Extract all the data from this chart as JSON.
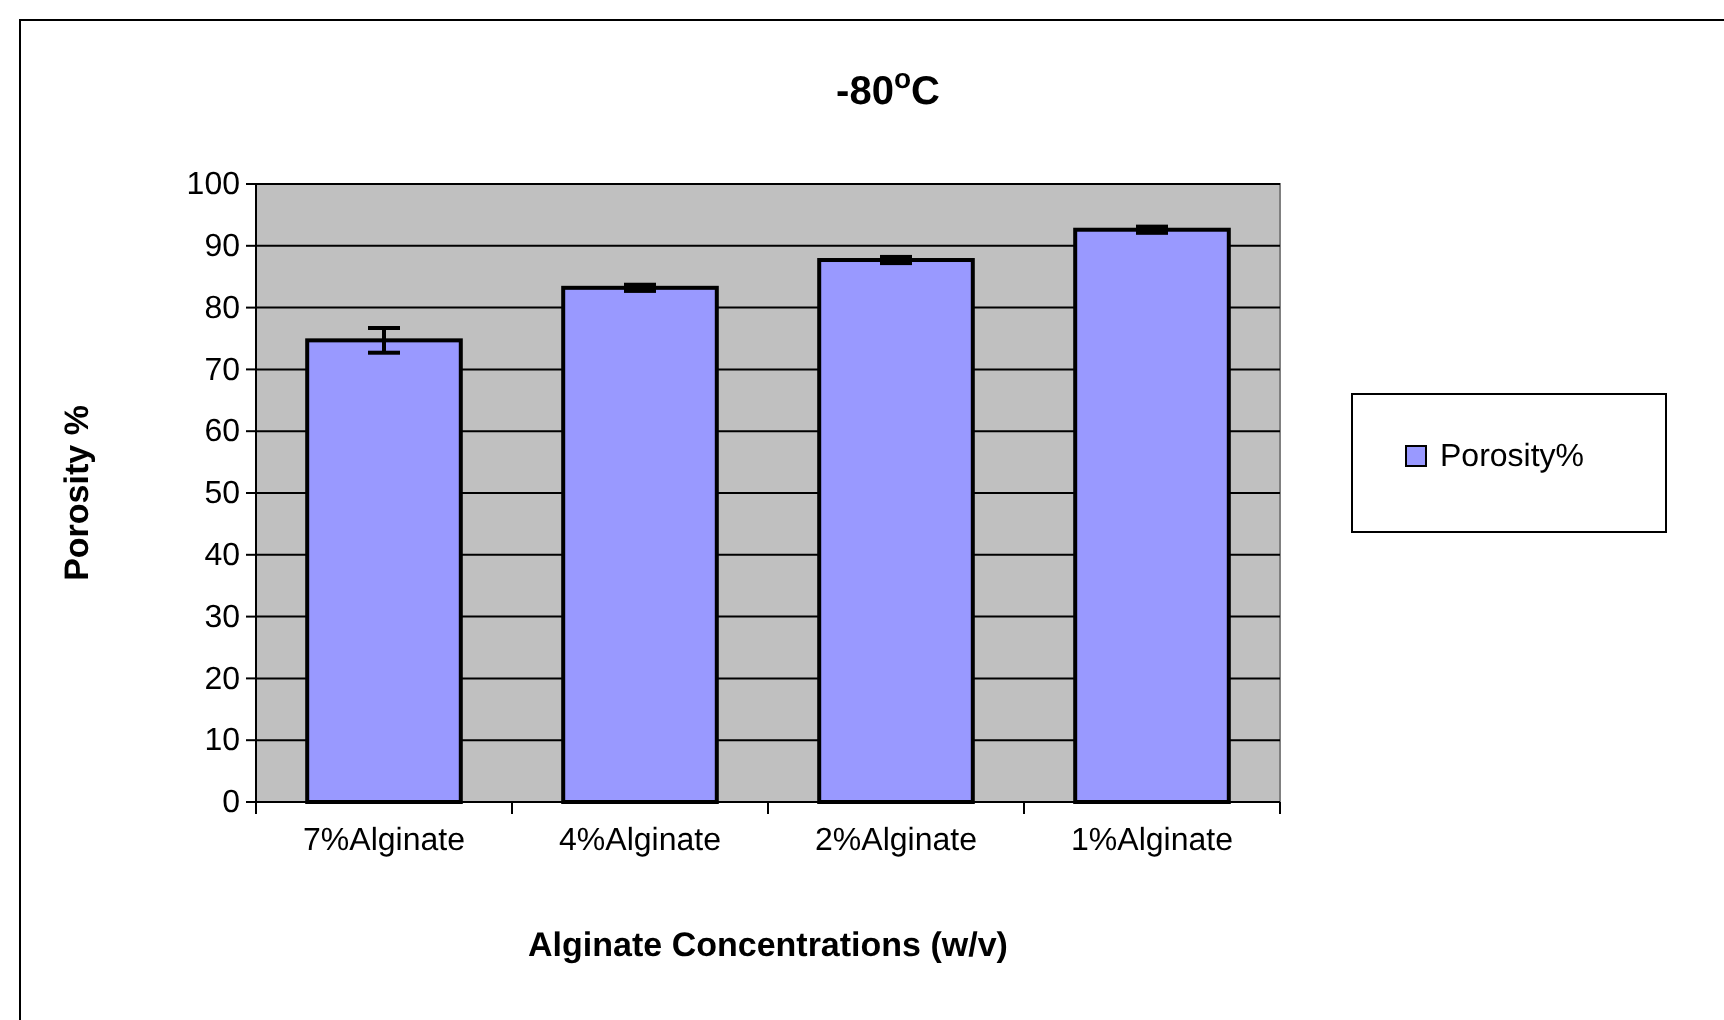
{
  "chart_data": {
    "type": "bar",
    "title": "-80$^{o}$C",
    "xlabel": "Alginate Concentrations (w/v)",
    "ylabel": "Porosity %",
    "categories": [
      "7%Alginate",
      "4%Alginate",
      "2%Alginate",
      "1%Alginate"
    ],
    "series": [
      {
        "name": "Porosity%",
        "color": "#9999ff",
        "values": [
          74.7,
          83.2,
          87.7,
          92.6
        ],
        "errors": [
          2,
          0.5,
          0.5,
          0.5
        ]
      }
    ],
    "ylim": [
      0,
      100
    ],
    "yticks": [
      0,
      10,
      20,
      30,
      40,
      50,
      60,
      70,
      80,
      90,
      100
    ],
    "grid": "y",
    "legend": "right"
  }
}
